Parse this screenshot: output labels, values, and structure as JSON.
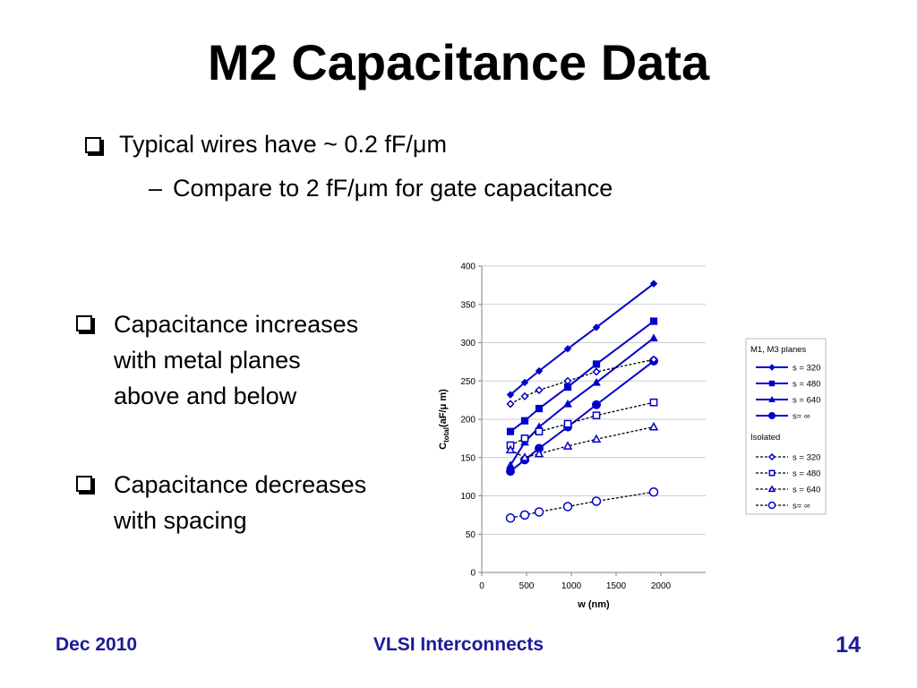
{
  "slide": {
    "title": "M2 Capacitance Data",
    "bullets": {
      "b1": "Typical wires have ~ 0.2 fF/μm",
      "b2": "Compare to 2 fF/μm for gate capacitance",
      "b3_line1": "Capacitance increases",
      "b3_line2": "with metal planes",
      "b3_line3": "above and below",
      "b4_line1": "Capacitance decreases",
      "b4_line2": "with spacing"
    }
  },
  "footer": {
    "left": "Dec 2010",
    "center": "VLSI Interconnects",
    "right": "14"
  },
  "chart_data": {
    "type": "line",
    "xlabel": "w (nm)",
    "ylabel_main": "C",
    "ylabel_sub": "total",
    "ylabel_units": "(aF/μ m)",
    "xlim": [
      0,
      2500
    ],
    "ylim": [
      0,
      400
    ],
    "xticks": [
      0,
      500,
      1000,
      1500,
      2000
    ],
    "yticks": [
      0,
      50,
      100,
      150,
      200,
      250,
      300,
      350,
      400
    ],
    "x": [
      320,
      480,
      640,
      960,
      1280,
      1920
    ],
    "legend": {
      "group1_title": "M1, M3 planes",
      "group2_title": "Isolated",
      "line_color": "#0000cc"
    },
    "series": [
      {
        "name": "s = 320",
        "group": "planes",
        "marker": "diamond",
        "values": [
          232,
          248,
          263,
          292,
          320,
          377
        ]
      },
      {
        "name": "s = 480",
        "group": "planes",
        "marker": "square",
        "values": [
          184,
          198,
          214,
          242,
          272,
          328
        ]
      },
      {
        "name": "s = 640",
        "group": "planes",
        "marker": "triangle",
        "values": [
          140,
          170,
          190,
          220,
          248,
          306
        ]
      },
      {
        "name": "s= ∞",
        "group": "planes",
        "marker": "circle",
        "values": [
          132,
          147,
          162,
          190,
          219,
          276
        ]
      },
      {
        "name": "s = 320",
        "group": "isolated",
        "marker": "diamond",
        "values": [
          220,
          230,
          238,
          250,
          262,
          278
        ]
      },
      {
        "name": "s = 480",
        "group": "isolated",
        "marker": "square",
        "values": [
          166,
          175,
          184,
          194,
          205,
          222
        ]
      },
      {
        "name": "s = 640",
        "group": "isolated",
        "marker": "triangle",
        "values": [
          160,
          150,
          155,
          165,
          174,
          190
        ]
      },
      {
        "name": "s= ∞",
        "group": "isolated",
        "marker": "circle",
        "values": [
          71,
          75,
          79,
          86,
          93,
          105
        ]
      }
    ]
  }
}
